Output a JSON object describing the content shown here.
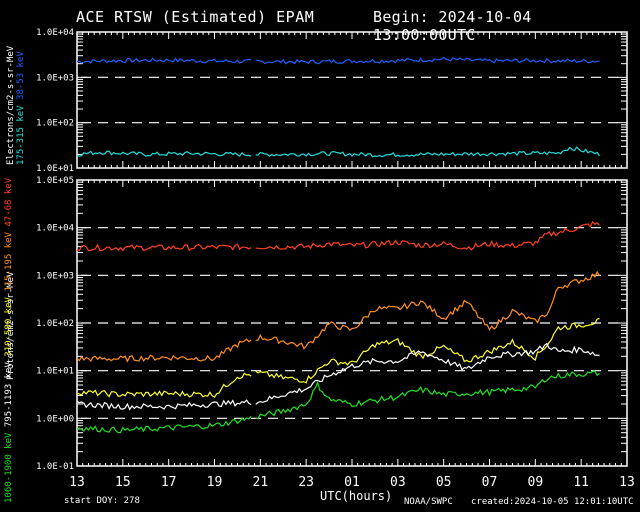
{
  "header": {
    "title": "ACE RTSW (Estimated) EPAM",
    "begin": "Begin: 2024-10-04 13:00:00UTC"
  },
  "footer": {
    "start_doy": "start DOY:  278",
    "xlabel": "UTC(hours)",
    "source": "NOAA/SWPC",
    "created": "created:2024-10-05 12:01:10UTC"
  },
  "colors": {
    "e38_53": "#1e5fff",
    "e175_315": "#22dddd",
    "p47_68": "#ff4020",
    "p115_195": "#ff9020",
    "p310_580": "#ffff30",
    "p795_1193": "#ffffff",
    "p1060_1900": "#20e020"
  },
  "chart_data": [
    {
      "type": "line",
      "title": "Electrons",
      "ylabel": "Electrons/cm2-s-sr-MeV",
      "yscale": "log",
      "ylim": [
        10,
        10000
      ],
      "yticks": [
        "1.0E+04",
        "1.0E+03",
        "1.0E+02",
        "1.0E+01"
      ],
      "xlim_hours": [
        0,
        24
      ],
      "xticks": [
        "13",
        "15",
        "17",
        "19",
        "21",
        "23",
        "01",
        "03",
        "05",
        "07",
        "09",
        "11",
        "13"
      ],
      "grid": "dashed at 1E+03 and 1E+02",
      "series": [
        {
          "name": "38-53 keV",
          "color": "#1e5fff",
          "points_hours_log10": [
            [
              0,
              3.35
            ],
            [
              2,
              3.37
            ],
            [
              4,
              3.38
            ],
            [
              6,
              3.36
            ],
            [
              8,
              3.35
            ],
            [
              10,
              3.34
            ],
            [
              12,
              3.36
            ],
            [
              14,
              3.37
            ],
            [
              16,
              3.4
            ],
            [
              18,
              3.36
            ],
            [
              20,
              3.37
            ],
            [
              21.5,
              3.36
            ],
            [
              22.9,
              3.36
            ]
          ]
        },
        {
          "name": "175-315 keV",
          "color": "#22dddd",
          "points_hours_log10": [
            [
              0,
              1.3
            ],
            [
              1,
              1.35
            ],
            [
              3,
              1.3
            ],
            [
              5,
              1.32
            ],
            [
              7,
              1.3
            ],
            [
              9,
              1.3
            ],
            [
              11,
              1.32
            ],
            [
              13,
              1.29
            ],
            [
              15,
              1.3
            ],
            [
              17,
              1.31
            ],
            [
              19,
              1.32
            ],
            [
              21,
              1.33
            ],
            [
              21.5,
              1.45
            ],
            [
              22.9,
              1.29
            ]
          ]
        }
      ]
    },
    {
      "type": "line",
      "title": "Protons",
      "ylabel": "Protons/cm2-s-sr-MeV",
      "yscale": "log",
      "ylim": [
        0.1,
        100000
      ],
      "yticks": [
        "1.0E+05",
        "1.0E+04",
        "1.0E+03",
        "1.0E+02",
        "1.0E+01",
        "1.0E+00",
        "1.0E-01"
      ],
      "xlim_hours": [
        0,
        24
      ],
      "xticks": [
        "13",
        "15",
        "17",
        "19",
        "21",
        "23",
        "01",
        "03",
        "05",
        "07",
        "09",
        "11",
        "13"
      ],
      "grid": "dashed at each decade",
      "series": [
        {
          "name": "47-68 keV",
          "color": "#ff4020",
          "points_hours_log10": [
            [
              0,
              3.58
            ],
            [
              4,
              3.58
            ],
            [
              6,
              3.59
            ],
            [
              8,
              3.6
            ],
            [
              10,
              3.6
            ],
            [
              11,
              3.66
            ],
            [
              12,
              3.62
            ],
            [
              13,
              3.65
            ],
            [
              14,
              3.7
            ],
            [
              15,
              3.63
            ],
            [
              16,
              3.66
            ],
            [
              17,
              3.58
            ],
            [
              18,
              3.66
            ],
            [
              19,
              3.62
            ],
            [
              20,
              3.68
            ],
            [
              20.5,
              3.85
            ],
            [
              21.5,
              3.95
            ],
            [
              22.5,
              4.08
            ],
            [
              22.9,
              4.05
            ]
          ]
        },
        {
          "name": "115-195 keV",
          "color": "#ff9020",
          "points_hours_log10": [
            [
              0,
              1.25
            ],
            [
              2,
              1.25
            ],
            [
              4,
              1.28
            ],
            [
              6,
              1.25
            ],
            [
              7,
              1.55
            ],
            [
              8,
              1.7
            ],
            [
              9,
              1.62
            ],
            [
              10,
              1.5
            ],
            [
              11,
              1.98
            ],
            [
              12,
              1.85
            ],
            [
              13,
              2.3
            ],
            [
              14,
              2.3
            ],
            [
              15,
              2.45
            ],
            [
              16,
              2.1
            ],
            [
              17,
              2.45
            ],
            [
              18,
              1.85
            ],
            [
              19,
              2.25
            ],
            [
              20,
              2.02
            ],
            [
              20.6,
              2.25
            ],
            [
              21,
              2.75
            ],
            [
              22,
              2.9
            ],
            [
              22.9,
              3.05
            ]
          ]
        },
        {
          "name": "310-580 keV",
          "color": "#ffff30",
          "points_hours_log10": [
            [
              0,
              0.55
            ],
            [
              2,
              0.5
            ],
            [
              4,
              0.52
            ],
            [
              6,
              0.5
            ],
            [
              7,
              0.88
            ],
            [
              8,
              0.95
            ],
            [
              9,
              0.85
            ],
            [
              10,
              0.8
            ],
            [
              11,
              1.2
            ],
            [
              12,
              1.15
            ],
            [
              13,
              1.55
            ],
            [
              14,
              1.62
            ],
            [
              15,
              1.3
            ],
            [
              16,
              1.5
            ],
            [
              17,
              1.2
            ],
            [
              18,
              1.4
            ],
            [
              19,
              1.6
            ],
            [
              20,
              1.28
            ],
            [
              20.6,
              1.6
            ],
            [
              21,
              1.9
            ],
            [
              22,
              1.96
            ],
            [
              22.9,
              2.05
            ]
          ]
        },
        {
          "name": "795-1193 keV",
          "color": "#ffffff",
          "points_hours_log10": [
            [
              0,
              0.3
            ],
            [
              2,
              0.25
            ],
            [
              4,
              0.25
            ],
            [
              6,
              0.3
            ],
            [
              8,
              0.35
            ],
            [
              9,
              0.5
            ],
            [
              10,
              0.62
            ],
            [
              11,
              0.9
            ],
            [
              12,
              1.1
            ],
            [
              13,
              1.2
            ],
            [
              14,
              1.2
            ],
            [
              15,
              1.4
            ],
            [
              16,
              1.22
            ],
            [
              17,
              1.02
            ],
            [
              18,
              1.3
            ],
            [
              19,
              1.35
            ],
            [
              20,
              1.4
            ],
            [
              20.5,
              1.55
            ],
            [
              21,
              1.4
            ],
            [
              22,
              1.45
            ],
            [
              22.9,
              1.3
            ]
          ]
        },
        {
          "name": "1060-1900 keV",
          "color": "#20e020",
          "points_hours_log10": [
            [
              0,
              -0.2
            ],
            [
              2,
              -0.25
            ],
            [
              4,
              -0.2
            ],
            [
              6,
              -0.15
            ],
            [
              8,
              0.05
            ],
            [
              9,
              0.15
            ],
            [
              10,
              0.3
            ],
            [
              10.5,
              0.7
            ],
            [
              11,
              0.4
            ],
            [
              12,
              0.3
            ],
            [
              14,
              0.45
            ],
            [
              15,
              0.6
            ],
            [
              16,
              0.5
            ],
            [
              18,
              0.55
            ],
            [
              19,
              0.6
            ],
            [
              20,
              0.65
            ],
            [
              20.5,
              0.85
            ],
            [
              21.5,
              0.92
            ],
            [
              22.9,
              0.95
            ]
          ]
        }
      ]
    }
  ]
}
